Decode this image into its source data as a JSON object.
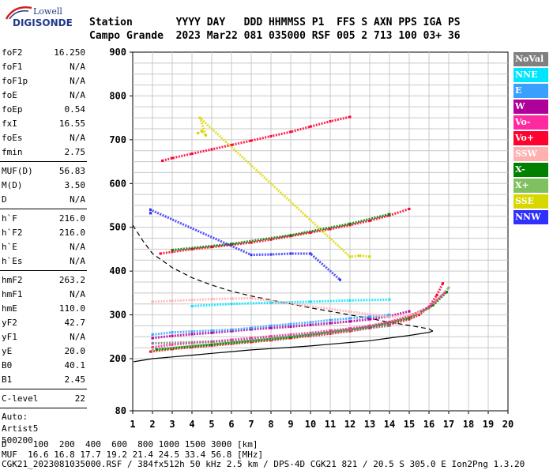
{
  "logo": {
    "top": "Lowell",
    "main": "DIGISONDE"
  },
  "header": {
    "row1": "Station       YYYY DAY   DDD HHMMSS P1  FFS S AXN PPS IGA PS",
    "row2": "Campo Grande  2023 Mar22 081 035000 RSF 005 2 713 100 03+ 36"
  },
  "params": {
    "group1": [
      {
        "name": "foF2",
        "value": "16.250"
      },
      {
        "name": "foF1",
        "value": "N/A"
      },
      {
        "name": "foF1p",
        "value": "N/A"
      },
      {
        "name": "foE",
        "value": "N/A"
      },
      {
        "name": "foEp",
        "value": "0.54"
      },
      {
        "name": "fxI",
        "value": "16.55"
      },
      {
        "name": "foEs",
        "value": "N/A"
      },
      {
        "name": "fmin",
        "value": "2.75"
      }
    ],
    "group2": [
      {
        "name": "MUF(D)",
        "value": "56.83"
      },
      {
        "name": "M(D)",
        "value": "3.50"
      },
      {
        "name": "D",
        "value": "N/A"
      }
    ],
    "group3": [
      {
        "name": "h`F",
        "value": "216.0"
      },
      {
        "name": "h`F2",
        "value": "216.0"
      },
      {
        "name": "h`E",
        "value": "N/A"
      },
      {
        "name": "h`Es",
        "value": "N/A"
      }
    ],
    "group4": [
      {
        "name": "hmF2",
        "value": "263.2"
      },
      {
        "name": "hmF1",
        "value": "N/A"
      },
      {
        "name": "hmE",
        "value": "110.0"
      },
      {
        "name": "yF2",
        "value": "42.7"
      },
      {
        "name": "yF1",
        "value": "N/A"
      },
      {
        "name": "yE",
        "value": "20.0"
      },
      {
        "name": "B0",
        "value": "40.1"
      },
      {
        "name": "B1",
        "value": "2.45"
      }
    ],
    "group5": [
      {
        "name": "C-level",
        "value": "22"
      }
    ],
    "auto": [
      "Auto:",
      "Artist5",
      "500200"
    ]
  },
  "legend": [
    {
      "label": "NoVal",
      "color": "#808080"
    },
    {
      "label": "NNE",
      "color": "#00e5ff"
    },
    {
      "label": "E",
      "color": "#3aa0ff"
    },
    {
      "label": "W",
      "color": "#b0009a"
    },
    {
      "label": "Vo-",
      "color": "#ff2aa0"
    },
    {
      "label": "Vo+",
      "color": "#ff0030"
    },
    {
      "label": "SSW",
      "color": "#ffb0b0"
    },
    {
      "label": "X-",
      "color": "#008000"
    },
    {
      "label": "X+",
      "color": "#80c060"
    },
    {
      "label": "SSE",
      "color": "#d8d800"
    },
    {
      "label": "NNW",
      "color": "#3030ff"
    }
  ],
  "footer": {
    "line1": "D     100  200  400  600  800 1000 1500 3000 [km]",
    "line2": "MUF  16.6 16.8 17.7 19.2 21.4 24.5 33.4 56.8 [MHz]",
    "line3": "CGK21_2023081035000.RSF / 384fx512h 50 kHz 2.5 km / DPS-4D CGK21 821 / 20.5 S 305.0 E Ion2Png 1.3.20"
  },
  "chart_data": {
    "type": "scatter",
    "xlim": [
      1,
      20
    ],
    "ylim": [
      80,
      900
    ],
    "x_ticks": [
      "1",
      "2",
      "3",
      "4",
      "5",
      "6",
      "7",
      "8",
      "9",
      "10",
      "11",
      "12",
      "13",
      "14",
      "15",
      "16",
      "17",
      "18",
      "19",
      "20"
    ],
    "y_ticks": [
      {
        "label": "900",
        "value": 900
      },
      {
        "label": "800",
        "value": 800
      },
      {
        "label": "700",
        "value": 700
      },
      {
        "label": "600",
        "value": 600
      },
      {
        "label": "500",
        "value": 500
      },
      {
        "label": "400",
        "value": 400
      },
      {
        "label": "300",
        "value": 300
      },
      {
        "label": "200",
        "value": 200
      },
      {
        "label": "80",
        "value": 80
      }
    ],
    "series": [
      {
        "name": "Vo+",
        "color": "#ff0030",
        "points": [
          [
            1.9,
            216
          ],
          [
            3,
            222
          ],
          [
            4,
            226
          ],
          [
            5,
            230
          ],
          [
            6,
            234
          ],
          [
            7,
            238
          ],
          [
            8,
            242
          ],
          [
            9,
            247
          ],
          [
            10,
            252
          ],
          [
            11,
            257
          ],
          [
            12,
            263
          ],
          [
            13,
            270
          ],
          [
            14,
            278
          ],
          [
            15,
            290
          ],
          [
            15.5,
            300
          ],
          [
            16,
            318
          ],
          [
            16.4,
            345
          ],
          [
            16.7,
            372
          ]
        ]
      },
      {
        "name": "X+",
        "color": "#80c060",
        "points": [
          [
            2,
            219
          ],
          [
            4,
            229
          ],
          [
            6,
            236
          ],
          [
            8,
            244
          ],
          [
            10,
            254
          ],
          [
            12,
            266
          ],
          [
            14,
            282
          ],
          [
            15,
            294
          ],
          [
            16,
            315
          ],
          [
            16.6,
            342
          ],
          [
            17,
            362
          ]
        ]
      },
      {
        "name": "X-",
        "color": "#008000",
        "points": [
          [
            2.2,
            221
          ],
          [
            5,
            232
          ],
          [
            9,
            249
          ],
          [
            13,
            272
          ],
          [
            15,
            293
          ],
          [
            16.2,
            322
          ],
          [
            16.9,
            352
          ]
        ]
      },
      {
        "name": "Vo-",
        "color": "#ff2aa0",
        "points": [
          [
            2,
            226
          ],
          [
            3,
            232
          ],
          [
            4,
            236
          ],
          [
            5,
            239
          ],
          [
            6,
            243
          ],
          [
            7,
            247
          ],
          [
            8,
            251
          ],
          [
            9,
            255
          ],
          [
            10,
            259
          ],
          [
            11,
            264
          ],
          [
            12,
            269
          ],
          [
            13,
            275
          ],
          [
            14,
            284
          ],
          [
            15,
            297
          ],
          [
            16,
            318
          ],
          [
            16.8,
            350
          ]
        ]
      },
      {
        "name": "W",
        "color": "#b0009a",
        "points": [
          [
            2,
            247
          ],
          [
            3,
            252
          ],
          [
            4,
            256
          ],
          [
            5,
            259
          ],
          [
            6,
            263
          ],
          [
            7,
            267
          ],
          [
            8,
            270
          ],
          [
            9,
            273
          ],
          [
            10,
            277
          ],
          [
            11,
            281
          ],
          [
            12,
            285
          ],
          [
            13,
            290
          ],
          [
            14,
            297
          ],
          [
            15,
            308
          ]
        ]
      },
      {
        "name": "E",
        "color": "#3aa0ff",
        "points": [
          [
            2,
            255
          ],
          [
            3,
            260
          ],
          [
            4,
            262
          ],
          [
            5,
            264
          ],
          [
            6,
            266
          ],
          [
            7,
            270
          ],
          [
            8,
            275
          ],
          [
            9,
            279
          ],
          [
            10,
            283
          ],
          [
            11,
            288
          ],
          [
            12,
            292
          ],
          [
            13,
            296
          ],
          [
            14,
            300
          ]
        ]
      },
      {
        "name": "NNE",
        "color": "#00e5ff",
        "points": [
          [
            4,
            320
          ],
          [
            6,
            325
          ],
          [
            8,
            328
          ],
          [
            10,
            330
          ],
          [
            12,
            333
          ],
          [
            14,
            335
          ]
        ]
      },
      {
        "name": "SSW",
        "color": "#ffb0b0",
        "points": [
          [
            2,
            330
          ],
          [
            3,
            332
          ],
          [
            4,
            334
          ],
          [
            5,
            336
          ],
          [
            6,
            337
          ],
          [
            7,
            338
          ],
          [
            14,
            295
          ],
          [
            15,
            300
          ],
          [
            15.5,
            305
          ]
        ]
      },
      {
        "name": "Vo+ (2nd hop)",
        "color": "#ff0030",
        "points": [
          [
            2.4,
            440
          ],
          [
            3,
            444
          ],
          [
            4,
            450
          ],
          [
            5,
            455
          ],
          [
            6,
            460
          ],
          [
            7,
            465
          ],
          [
            8,
            472
          ],
          [
            9,
            480
          ],
          [
            10,
            488
          ],
          [
            11,
            496
          ],
          [
            12,
            505
          ],
          [
            13,
            515
          ],
          [
            14,
            527
          ],
          [
            15,
            542
          ]
        ]
      },
      {
        "name": "X- (2nd hop)",
        "color": "#008000",
        "points": [
          [
            3,
            448
          ],
          [
            6,
            462
          ],
          [
            9,
            482
          ],
          [
            12,
            508
          ],
          [
            14,
            530
          ]
        ]
      },
      {
        "name": "Vo+ (3rd hop)",
        "color": "#ff0030",
        "points": [
          [
            2.5,
            652
          ],
          [
            3,
            658
          ],
          [
            4,
            668
          ],
          [
            5,
            678
          ],
          [
            6,
            688
          ],
          [
            7,
            698
          ],
          [
            8,
            708
          ],
          [
            9,
            718
          ],
          [
            10,
            730
          ],
          [
            11,
            742
          ],
          [
            12,
            752
          ]
        ]
      },
      {
        "name": "NNW",
        "color": "#3030ff",
        "points": [
          [
            1.9,
            532
          ],
          [
            1.9,
            540
          ],
          [
            7,
            437
          ],
          [
            8,
            438
          ],
          [
            9,
            440
          ],
          [
            10,
            440
          ],
          [
            11.5,
            380
          ]
        ]
      },
      {
        "name": "SSE",
        "color": "#d8d800",
        "points": [
          [
            4.3,
            715
          ],
          [
            4.5,
            720
          ],
          [
            4.7,
            710
          ],
          [
            4.4,
            750
          ],
          [
            12,
            433
          ],
          [
            12.5,
            435
          ],
          [
            13,
            433
          ]
        ]
      },
      {
        "name": "NoVal",
        "color": "#808080",
        "points": [
          [
            2,
            235
          ],
          [
            6,
            240
          ],
          [
            10,
            256
          ],
          [
            14,
            275
          ]
        ]
      }
    ],
    "curves": [
      {
        "name": "true-height profile",
        "style": "solid",
        "color": "#000000",
        "points": [
          [
            1.05,
            193
          ],
          [
            2,
            200
          ],
          [
            3,
            204
          ],
          [
            4,
            208
          ],
          [
            5,
            212
          ],
          [
            6,
            216
          ],
          [
            7,
            220
          ],
          [
            8,
            223
          ],
          [
            9,
            226
          ],
          [
            10,
            229
          ],
          [
            11,
            233
          ],
          [
            12,
            237
          ],
          [
            13,
            241
          ],
          [
            14,
            247
          ],
          [
            15,
            253
          ],
          [
            16,
            260
          ],
          [
            16.2,
            263
          ]
        ]
      },
      {
        "name": "MUF curve",
        "style": "dashed",
        "color": "#000000",
        "points": [
          [
            1.0,
            505
          ],
          [
            1.5,
            470
          ],
          [
            2,
            440
          ],
          [
            3,
            408
          ],
          [
            4,
            385
          ],
          [
            5,
            368
          ],
          [
            6,
            354
          ],
          [
            7,
            343
          ],
          [
            8,
            334
          ],
          [
            9,
            325
          ],
          [
            10,
            316
          ],
          [
            11,
            308
          ],
          [
            12,
            300
          ],
          [
            13,
            292
          ],
          [
            14,
            283
          ],
          [
            15,
            276
          ],
          [
            16,
            268
          ],
          [
            16.2,
            263
          ]
        ]
      }
    ]
  }
}
